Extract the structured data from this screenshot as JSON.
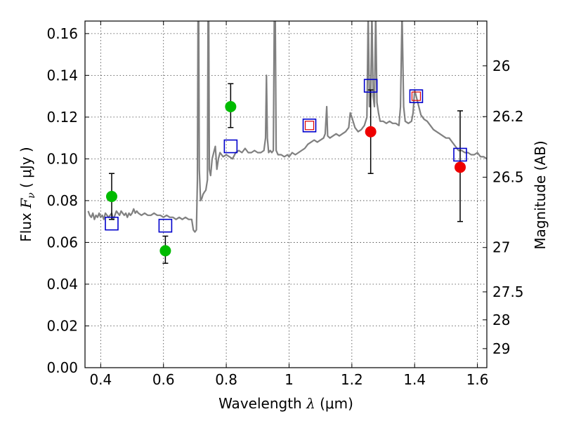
{
  "chart_data": {
    "type": "scatter",
    "xlabel": "Wavelength  λ (μm)",
    "ylabel": "Flux  F_ν  ( μJy )",
    "ylabel_parts": {
      "prefix": "Flux  ",
      "symbol": "F",
      "subscript": "ν",
      "suffix": "  ( μJy )"
    },
    "xlabel_parts": {
      "prefix": "Wavelength  ",
      "symbol": "λ",
      "suffix": " (μm)"
    },
    "y2label": "Magnitude (AB)",
    "xlim": [
      0.35,
      1.63
    ],
    "ylim": [
      0.0,
      0.166
    ],
    "grid": true,
    "x_ticks": [
      {
        "value": 0.4,
        "label": "0.4"
      },
      {
        "value": 0.6,
        "label": "0.6"
      },
      {
        "value": 0.8,
        "label": "0.8"
      },
      {
        "value": 1.0,
        "label": "1"
      },
      {
        "value": 1.2,
        "label": "1.2"
      },
      {
        "value": 1.4,
        "label": "1.4"
      },
      {
        "value": 1.6,
        "label": "1.6"
      }
    ],
    "y_ticks": [
      {
        "value": 0.0,
        "label": "0.00"
      },
      {
        "value": 0.02,
        "label": "0.02"
      },
      {
        "value": 0.04,
        "label": "0.04"
      },
      {
        "value": 0.06,
        "label": "0.06"
      },
      {
        "value": 0.08,
        "label": "0.08"
      },
      {
        "value": 0.1,
        "label": "0.10"
      },
      {
        "value": 0.12,
        "label": "0.12"
      },
      {
        "value": 0.14,
        "label": "0.14"
      },
      {
        "value": 0.16,
        "label": "0.16"
      }
    ],
    "mag_ticks": [
      {
        "value": 26.0,
        "label": "26"
      },
      {
        "value": 26.2,
        "label": "26.2"
      },
      {
        "value": 26.5,
        "label": "26.5"
      },
      {
        "value": 27.0,
        "label": "27"
      },
      {
        "value": 27.5,
        "label": "27.5"
      },
      {
        "value": 28.0,
        "label": "28"
      },
      {
        "value": 29.0,
        "label": "29"
      }
    ],
    "colors": {
      "spectrum": "#808080",
      "green": "#00bb00",
      "red": "#ee0000",
      "blue": "#0000cc",
      "red_box": "#dd0000",
      "errorbar": "#000000"
    },
    "spectrum": [
      [
        0.36,
        0.075
      ],
      [
        0.365,
        0.073
      ],
      [
        0.37,
        0.072
      ],
      [
        0.375,
        0.074
      ],
      [
        0.38,
        0.071
      ],
      [
        0.385,
        0.073
      ],
      [
        0.39,
        0.072
      ],
      [
        0.395,
        0.074
      ],
      [
        0.4,
        0.072
      ],
      [
        0.405,
        0.073
      ],
      [
        0.41,
        0.071
      ],
      [
        0.415,
        0.074
      ],
      [
        0.42,
        0.073
      ],
      [
        0.425,
        0.072
      ],
      [
        0.43,
        0.073
      ],
      [
        0.435,
        0.074
      ],
      [
        0.44,
        0.071
      ],
      [
        0.445,
        0.073
      ],
      [
        0.45,
        0.075
      ],
      [
        0.455,
        0.074
      ],
      [
        0.46,
        0.073
      ],
      [
        0.465,
        0.075
      ],
      [
        0.47,
        0.074
      ],
      [
        0.475,
        0.073
      ],
      [
        0.48,
        0.074
      ],
      [
        0.485,
        0.072
      ],
      [
        0.49,
        0.074
      ],
      [
        0.495,
        0.073
      ],
      [
        0.5,
        0.074
      ],
      [
        0.505,
        0.076
      ],
      [
        0.51,
        0.074
      ],
      [
        0.515,
        0.075
      ],
      [
        0.52,
        0.074
      ],
      [
        0.53,
        0.073
      ],
      [
        0.54,
        0.074
      ],
      [
        0.55,
        0.073
      ],
      [
        0.56,
        0.073
      ],
      [
        0.57,
        0.074
      ],
      [
        0.58,
        0.073
      ],
      [
        0.59,
        0.073
      ],
      [
        0.6,
        0.072
      ],
      [
        0.61,
        0.073
      ],
      [
        0.62,
        0.072
      ],
      [
        0.63,
        0.072
      ],
      [
        0.64,
        0.071
      ],
      [
        0.65,
        0.072
      ],
      [
        0.66,
        0.071
      ],
      [
        0.67,
        0.072
      ],
      [
        0.68,
        0.071
      ],
      [
        0.69,
        0.071
      ],
      [
        0.695,
        0.066
      ],
      [
        0.7,
        0.065
      ],
      [
        0.705,
        0.066
      ],
      [
        0.708,
        0.09
      ],
      [
        0.71,
        0.17
      ],
      [
        0.712,
        0.17
      ],
      [
        0.714,
        0.095
      ],
      [
        0.718,
        0.08
      ],
      [
        0.722,
        0.081
      ],
      [
        0.726,
        0.083
      ],
      [
        0.73,
        0.084
      ],
      [
        0.735,
        0.085
      ],
      [
        0.74,
        0.09
      ],
      [
        0.742,
        0.17
      ],
      [
        0.744,
        0.17
      ],
      [
        0.746,
        0.095
      ],
      [
        0.75,
        0.092
      ],
      [
        0.755,
        0.1
      ],
      [
        0.76,
        0.103
      ],
      [
        0.765,
        0.106
      ],
      [
        0.77,
        0.095
      ],
      [
        0.775,
        0.1
      ],
      [
        0.78,
        0.103
      ],
      [
        0.79,
        0.101
      ],
      [
        0.8,
        0.102
      ],
      [
        0.81,
        0.101
      ],
      [
        0.82,
        0.1
      ],
      [
        0.83,
        0.103
      ],
      [
        0.84,
        0.104
      ],
      [
        0.85,
        0.103
      ],
      [
        0.86,
        0.105
      ],
      [
        0.87,
        0.103
      ],
      [
        0.88,
        0.103
      ],
      [
        0.89,
        0.104
      ],
      [
        0.9,
        0.103
      ],
      [
        0.91,
        0.103
      ],
      [
        0.92,
        0.104
      ],
      [
        0.925,
        0.11
      ],
      [
        0.928,
        0.14
      ],
      [
        0.931,
        0.11
      ],
      [
        0.935,
        0.103
      ],
      [
        0.94,
        0.104
      ],
      [
        0.945,
        0.103
      ],
      [
        0.95,
        0.104
      ],
      [
        0.953,
        0.17
      ],
      [
        0.956,
        0.17
      ],
      [
        0.959,
        0.104
      ],
      [
        0.965,
        0.102
      ],
      [
        0.975,
        0.102
      ],
      [
        0.985,
        0.101
      ],
      [
        0.995,
        0.102
      ],
      [
        1.0,
        0.101
      ],
      [
        1.01,
        0.103
      ],
      [
        1.02,
        0.102
      ],
      [
        1.03,
        0.103
      ],
      [
        1.04,
        0.104
      ],
      [
        1.05,
        0.105
      ],
      [
        1.06,
        0.107
      ],
      [
        1.07,
        0.108
      ],
      [
        1.08,
        0.109
      ],
      [
        1.09,
        0.108
      ],
      [
        1.1,
        0.109
      ],
      [
        1.11,
        0.11
      ],
      [
        1.115,
        0.112
      ],
      [
        1.12,
        0.125
      ],
      [
        1.123,
        0.111
      ],
      [
        1.13,
        0.11
      ],
      [
        1.14,
        0.111
      ],
      [
        1.15,
        0.112
      ],
      [
        1.16,
        0.111
      ],
      [
        1.17,
        0.112
      ],
      [
        1.18,
        0.113
      ],
      [
        1.19,
        0.115
      ],
      [
        1.195,
        0.122
      ],
      [
        1.2,
        0.12
      ],
      [
        1.21,
        0.115
      ],
      [
        1.22,
        0.113
      ],
      [
        1.23,
        0.114
      ],
      [
        1.24,
        0.116
      ],
      [
        1.248,
        0.12
      ],
      [
        1.252,
        0.17
      ],
      [
        1.256,
        0.125
      ],
      [
        1.26,
        0.13
      ],
      [
        1.264,
        0.17
      ],
      [
        1.268,
        0.13
      ],
      [
        1.272,
        0.125
      ],
      [
        1.276,
        0.17
      ],
      [
        1.28,
        0.127
      ],
      [
        1.285,
        0.122
      ],
      [
        1.29,
        0.118
      ],
      [
        1.3,
        0.118
      ],
      [
        1.31,
        0.117
      ],
      [
        1.32,
        0.118
      ],
      [
        1.33,
        0.117
      ],
      [
        1.34,
        0.117
      ],
      [
        1.35,
        0.116
      ],
      [
        1.355,
        0.125
      ],
      [
        1.36,
        0.17
      ],
      [
        1.365,
        0.125
      ],
      [
        1.37,
        0.118
      ],
      [
        1.38,
        0.117
      ],
      [
        1.39,
        0.118
      ],
      [
        1.395,
        0.122
      ],
      [
        1.4,
        0.133
      ],
      [
        1.41,
        0.127
      ],
      [
        1.42,
        0.121
      ],
      [
        1.43,
        0.119
      ],
      [
        1.44,
        0.118
      ],
      [
        1.45,
        0.116
      ],
      [
        1.46,
        0.114
      ],
      [
        1.47,
        0.113
      ],
      [
        1.48,
        0.112
      ],
      [
        1.49,
        0.111
      ],
      [
        1.5,
        0.11
      ],
      [
        1.51,
        0.11
      ],
      [
        1.52,
        0.108
      ],
      [
        1.53,
        0.106
      ],
      [
        1.54,
        0.104
      ],
      [
        1.55,
        0.104
      ],
      [
        1.56,
        0.103
      ],
      [
        1.57,
        0.103
      ],
      [
        1.58,
        0.102
      ],
      [
        1.59,
        0.102
      ],
      [
        1.6,
        0.103
      ],
      [
        1.61,
        0.101
      ],
      [
        1.62,
        0.101
      ],
      [
        1.63,
        0.1
      ]
    ],
    "photometry": [
      {
        "x": 0.435,
        "y": 0.082,
        "yerr_lo": 0.071,
        "yerr_hi": 0.093,
        "color": "green"
      },
      {
        "x": 0.606,
        "y": 0.056,
        "yerr_lo": 0.05,
        "yerr_hi": 0.063,
        "color": "green"
      },
      {
        "x": 0.814,
        "y": 0.125,
        "yerr_lo": 0.115,
        "yerr_hi": 0.136,
        "color": "green"
      },
      {
        "x": 1.26,
        "y": 0.113,
        "yerr_lo": 0.093,
        "yerr_hi": 0.133,
        "color": "red"
      },
      {
        "x": 1.545,
        "y": 0.096,
        "yerr_lo": 0.07,
        "yerr_hi": 0.123,
        "color": "red"
      }
    ],
    "model_boxes": [
      {
        "x": 0.435,
        "y": 0.069,
        "color": "blue"
      },
      {
        "x": 0.606,
        "y": 0.068,
        "color": "blue"
      },
      {
        "x": 0.814,
        "y": 0.106,
        "color": "blue"
      },
      {
        "x": 1.065,
        "y": 0.116,
        "color": "blue",
        "inner": "red_box"
      },
      {
        "x": 1.26,
        "y": 0.135,
        "color": "blue"
      },
      {
        "x": 1.405,
        "y": 0.13,
        "color": "blue",
        "inner": "red_box"
      },
      {
        "x": 1.545,
        "y": 0.102,
        "color": "blue"
      }
    ]
  }
}
